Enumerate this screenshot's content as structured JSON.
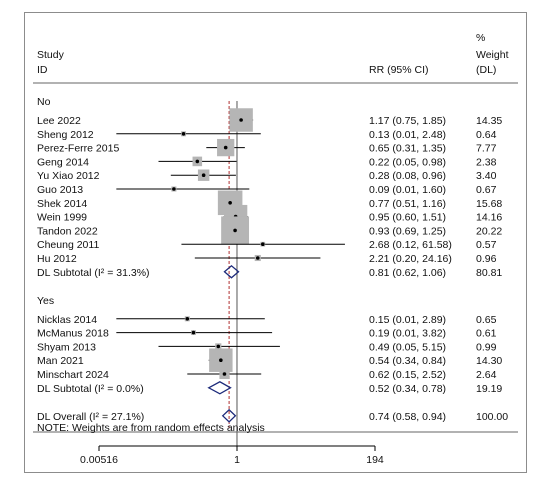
{
  "header": {
    "study": "Study",
    "id": "ID",
    "rr": "RR (95% CI)",
    "pct": "%",
    "weight": "Weight",
    "dl": "(DL)"
  },
  "note": "NOTE: Weights are from random effects analysis",
  "chart_data": {
    "type": "forest",
    "scale": "log",
    "xlim": [
      0.00516,
      194
    ],
    "ticks": [
      {
        "value": 0.00516,
        "label": "0.00516"
      },
      {
        "value": 1,
        "label": "1"
      },
      {
        "value": 194,
        "label": "194"
      }
    ],
    "overall_rr": 0.74,
    "groups": [
      {
        "label": "No",
        "studies": [
          {
            "name": "Lee 2022",
            "rr": 1.17,
            "lo": 0.75,
            "hi": 1.85,
            "ci_text": "1.17 (0.75, 1.85)",
            "weight": 14.35,
            "weight_text": "14.35"
          },
          {
            "name": "Sheng 2012",
            "rr": 0.13,
            "lo": 0.01,
            "hi": 2.48,
            "ci_text": "0.13 (0.01, 2.48)",
            "weight": 0.64,
            "weight_text": "0.64"
          },
          {
            "name": "Perez-Ferre 2015",
            "rr": 0.65,
            "lo": 0.31,
            "hi": 1.35,
            "ci_text": "0.65 (0.31, 1.35)",
            "weight": 7.77,
            "weight_text": "7.77"
          },
          {
            "name": "Geng 2014",
            "rr": 0.22,
            "lo": 0.05,
            "hi": 0.98,
            "ci_text": "0.22 (0.05, 0.98)",
            "weight": 2.38,
            "weight_text": "2.38"
          },
          {
            "name": "Yu Xiao 2012",
            "rr": 0.28,
            "lo": 0.08,
            "hi": 0.96,
            "ci_text": "0.28 (0.08, 0.96)",
            "weight": 3.4,
            "weight_text": "3.40"
          },
          {
            "name": "Guo 2013",
            "rr": 0.09,
            "lo": 0.01,
            "hi": 1.6,
            "ci_text": "0.09 (0.01, 1.60)",
            "weight": 0.67,
            "weight_text": "0.67"
          },
          {
            "name": "Shek 2014",
            "rr": 0.77,
            "lo": 0.51,
            "hi": 1.16,
            "ci_text": "0.77 (0.51, 1.16)",
            "weight": 15.68,
            "weight_text": "15.68"
          },
          {
            "name": "Wein 1999",
            "rr": 0.95,
            "lo": 0.6,
            "hi": 1.51,
            "ci_text": "0.95 (0.60, 1.51)",
            "weight": 14.16,
            "weight_text": "14.16"
          },
          {
            "name": "Tandon 2022",
            "rr": 0.93,
            "lo": 0.69,
            "hi": 1.25,
            "ci_text": "0.93 (0.69, 1.25)",
            "weight": 20.22,
            "weight_text": "20.22"
          },
          {
            "name": "Cheung 2011",
            "rr": 2.68,
            "lo": 0.12,
            "hi": 61.58,
            "ci_text": "2.68 (0.12, 61.58)",
            "weight": 0.57,
            "weight_text": "0.57"
          },
          {
            "name": "Hu 2012",
            "rr": 2.21,
            "lo": 0.2,
            "hi": 24.16,
            "ci_text": "2.21 (0.20, 24.16)",
            "weight": 0.96,
            "weight_text": "0.96"
          }
        ],
        "subtotal": {
          "label": "DL Subtotal  (I² = 31.3%)",
          "rr": 0.81,
          "lo": 0.62,
          "hi": 1.06,
          "ci_text": "0.81 (0.62, 1.06)",
          "weight_text": "80.81"
        }
      },
      {
        "label": "Yes",
        "studies": [
          {
            "name": "Nicklas 2014",
            "rr": 0.15,
            "lo": 0.01,
            "hi": 2.89,
            "ci_text": "0.15 (0.01, 2.89)",
            "weight": 0.65,
            "weight_text": "0.65"
          },
          {
            "name": "McManus 2018",
            "rr": 0.19,
            "lo": 0.01,
            "hi": 3.82,
            "ci_text": "0.19 (0.01, 3.82)",
            "weight": 0.61,
            "weight_text": "0.61"
          },
          {
            "name": "Shyam 2013",
            "rr": 0.49,
            "lo": 0.05,
            "hi": 5.15,
            "ci_text": "0.49 (0.05, 5.15)",
            "weight": 0.99,
            "weight_text": "0.99"
          },
          {
            "name": "Man 2021",
            "rr": 0.54,
            "lo": 0.34,
            "hi": 0.84,
            "ci_text": "0.54 (0.34, 0.84)",
            "weight": 14.3,
            "weight_text": "14.30"
          },
          {
            "name": "Minschart 2024",
            "rr": 0.62,
            "lo": 0.15,
            "hi": 2.52,
            "ci_text": "0.62 (0.15, 2.52)",
            "weight": 2.64,
            "weight_text": "2.64"
          }
        ],
        "subtotal": {
          "label": "DL Subtotal  (I² = 0.0%)",
          "rr": 0.52,
          "lo": 0.34,
          "hi": 0.78,
          "ci_text": "0.52 (0.34, 0.78)",
          "weight_text": "19.19"
        }
      }
    ],
    "overall": {
      "label": "DL Overall  (I² = 27.1%)",
      "rr": 0.74,
      "lo": 0.58,
      "hi": 0.94,
      "ci_text": "0.74 (0.58, 0.94)",
      "weight_text": "100.00"
    }
  }
}
